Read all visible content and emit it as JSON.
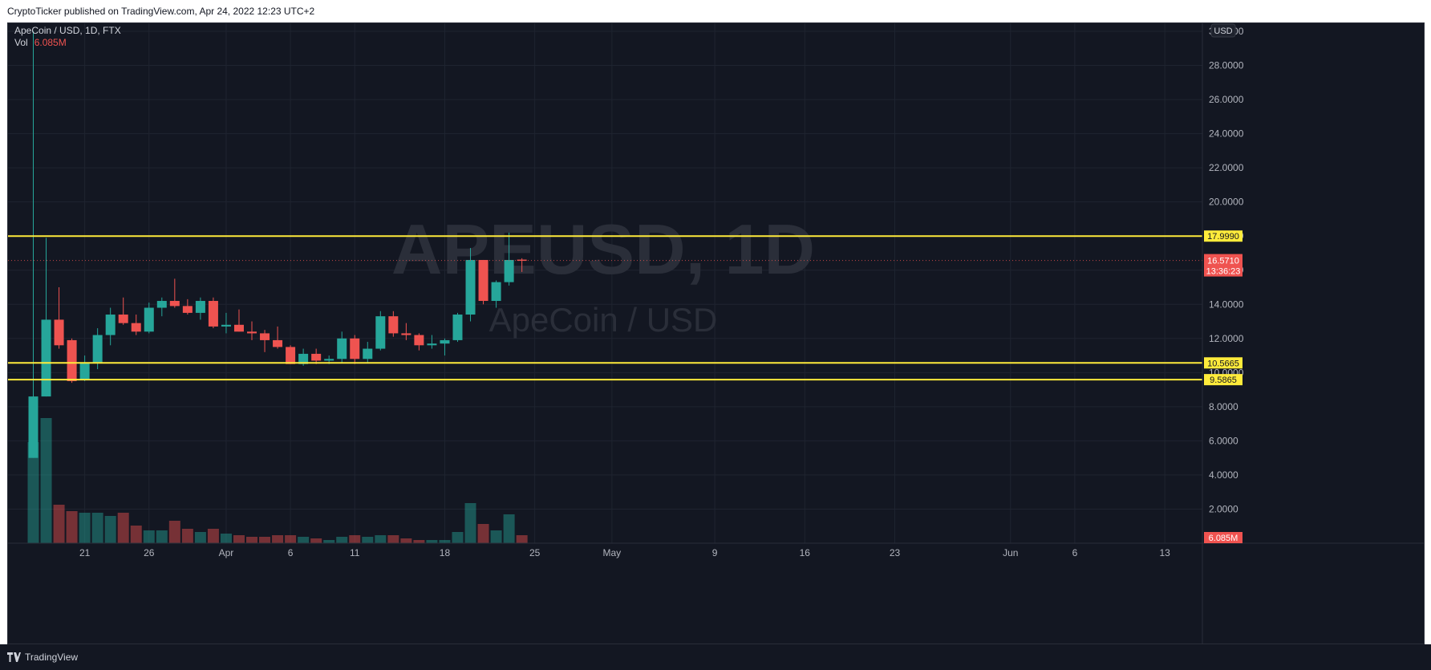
{
  "publish_note": "CryptoTicker published on TradingView.com, Apr 24, 2022 12:23 UTC+2",
  "brand": {
    "name": "TradingView",
    "icon": "tradingview-logo-icon"
  },
  "colors": {
    "background": "#131722",
    "up": "#26a69a",
    "down": "#ef5350",
    "level_line": "#ffeb3b",
    "watermark": "#2a2e39"
  },
  "legend": {
    "title": "ApeCoin / USD, 1D, FTX",
    "vol_label": "Vol",
    "vol_value": "6.085M"
  },
  "watermark": {
    "symbol": "APEUSD, 1D",
    "name": "ApeCoin / USD"
  },
  "currency_badge": "USD",
  "chart_data": {
    "type": "candlestick",
    "title": "ApeCoin / USD, 1D, FTX",
    "ylim": [
      0,
      30
    ],
    "y_ticks": [
      "2.0000",
      "4.0000",
      "6.0000",
      "8.0000",
      "10.0000",
      "12.0000",
      "14.0000",
      "16.0000",
      "18.0000",
      "20.0000",
      "22.0000",
      "24.0000",
      "26.0000",
      "28.0000",
      "30.0000"
    ],
    "x_ticks": [
      "21",
      "26",
      "Apr",
      "6",
      "11",
      "18",
      "25",
      "May",
      "9",
      "16",
      "23",
      "Jun",
      "6",
      "13"
    ],
    "price_scale_labels": [
      {
        "label": "17.9990",
        "type": "horizontal-level"
      },
      {
        "label": "10.5665",
        "type": "horizontal-level"
      },
      {
        "label": "9.5865",
        "type": "horizontal-level"
      },
      {
        "label": "16.5710",
        "type": "last-price"
      },
      {
        "label": "13:36:23",
        "type": "countdown"
      },
      {
        "label": "6.085M",
        "type": "last-volume"
      }
    ],
    "horizontal_levels": [
      17.999,
      10.5665,
      9.5865
    ],
    "last_price": 16.571,
    "series": [
      {
        "date": "2022-03-17",
        "open": 5.0,
        "high": 30.0,
        "low": 5.0,
        "close": 8.6,
        "volume": 6.3
      },
      {
        "date": "2022-03-18",
        "open": 8.6,
        "high": 17.9,
        "low": 8.6,
        "close": 13.1,
        "volume": 7.8
      },
      {
        "date": "2022-03-19",
        "open": 13.1,
        "high": 15.0,
        "low": 11.4,
        "close": 11.6,
        "volume": 2.4
      },
      {
        "date": "2022-03-20",
        "open": 11.9,
        "high": 12.0,
        "low": 9.4,
        "close": 9.5,
        "volume": 2.0
      },
      {
        "date": "2022-03-21",
        "open": 9.6,
        "high": 11.0,
        "low": 9.5,
        "close": 10.6,
        "volume": 1.9
      },
      {
        "date": "2022-03-22",
        "open": 10.6,
        "high": 12.6,
        "low": 10.2,
        "close": 12.2,
        "volume": 1.9
      },
      {
        "date": "2022-03-23",
        "open": 12.2,
        "high": 13.8,
        "low": 11.6,
        "close": 13.4,
        "volume": 1.7
      },
      {
        "date": "2022-03-24",
        "open": 13.4,
        "high": 14.4,
        "low": 12.8,
        "close": 12.9,
        "volume": 1.9
      },
      {
        "date": "2022-03-25",
        "open": 12.9,
        "high": 13.4,
        "low": 12.2,
        "close": 12.4,
        "volume": 1.1
      },
      {
        "date": "2022-03-26",
        "open": 12.4,
        "high": 14.1,
        "low": 12.3,
        "close": 13.8,
        "volume": 0.8
      },
      {
        "date": "2022-03-27",
        "open": 13.8,
        "high": 14.4,
        "low": 13.3,
        "close": 14.2,
        "volume": 0.8
      },
      {
        "date": "2022-03-28",
        "open": 14.2,
        "high": 15.5,
        "low": 13.8,
        "close": 13.9,
        "volume": 1.4
      },
      {
        "date": "2022-03-29",
        "open": 13.9,
        "high": 14.3,
        "low": 13.4,
        "close": 13.5,
        "volume": 0.9
      },
      {
        "date": "2022-03-30",
        "open": 13.5,
        "high": 14.4,
        "low": 13.1,
        "close": 14.2,
        "volume": 0.7
      },
      {
        "date": "2022-03-31",
        "open": 14.2,
        "high": 14.4,
        "low": 12.6,
        "close": 12.7,
        "volume": 0.9
      },
      {
        "date": "2022-04-01",
        "open": 12.7,
        "high": 13.5,
        "low": 12.3,
        "close": 12.8,
        "volume": 0.6
      },
      {
        "date": "2022-04-02",
        "open": 12.8,
        "high": 13.7,
        "low": 12.4,
        "close": 12.4,
        "volume": 0.5
      },
      {
        "date": "2022-04-03",
        "open": 12.4,
        "high": 13.0,
        "low": 11.9,
        "close": 12.3,
        "volume": 0.4
      },
      {
        "date": "2022-04-04",
        "open": 12.3,
        "high": 12.5,
        "low": 11.2,
        "close": 11.9,
        "volume": 0.4
      },
      {
        "date": "2022-04-05",
        "open": 11.9,
        "high": 12.7,
        "low": 11.4,
        "close": 11.5,
        "volume": 0.5
      },
      {
        "date": "2022-04-06",
        "open": 11.5,
        "high": 11.6,
        "low": 10.5,
        "close": 10.5,
        "volume": 0.5
      },
      {
        "date": "2022-04-07",
        "open": 10.5,
        "high": 11.4,
        "low": 10.4,
        "close": 11.1,
        "volume": 0.4
      },
      {
        "date": "2022-04-08",
        "open": 11.1,
        "high": 11.4,
        "low": 10.5,
        "close": 10.7,
        "volume": 0.3
      },
      {
        "date": "2022-04-09",
        "open": 10.7,
        "high": 11.0,
        "low": 10.5,
        "close": 10.8,
        "volume": 0.2
      },
      {
        "date": "2022-04-10",
        "open": 10.8,
        "high": 12.4,
        "low": 10.6,
        "close": 12.0,
        "volume": 0.4
      },
      {
        "date": "2022-04-11",
        "open": 12.0,
        "high": 12.2,
        "low": 10.5,
        "close": 10.8,
        "volume": 0.5
      },
      {
        "date": "2022-04-12",
        "open": 10.8,
        "high": 11.8,
        "low": 10.6,
        "close": 11.4,
        "volume": 0.4
      },
      {
        "date": "2022-04-13",
        "open": 11.4,
        "high": 13.6,
        "low": 11.3,
        "close": 13.3,
        "volume": 0.5
      },
      {
        "date": "2022-04-14",
        "open": 13.3,
        "high": 13.6,
        "low": 12.1,
        "close": 12.3,
        "volume": 0.5
      },
      {
        "date": "2022-04-15",
        "open": 12.3,
        "high": 12.9,
        "low": 11.9,
        "close": 12.2,
        "volume": 0.3
      },
      {
        "date": "2022-04-16",
        "open": 12.2,
        "high": 12.3,
        "low": 11.3,
        "close": 11.6,
        "volume": 0.2
      },
      {
        "date": "2022-04-17",
        "open": 11.6,
        "high": 12.2,
        "low": 11.4,
        "close": 11.7,
        "volume": 0.2
      },
      {
        "date": "2022-04-18",
        "open": 11.7,
        "high": 12.0,
        "low": 11.0,
        "close": 11.9,
        "volume": 0.2
      },
      {
        "date": "2022-04-19",
        "open": 11.9,
        "high": 13.5,
        "low": 11.8,
        "close": 13.4,
        "volume": 0.7
      },
      {
        "date": "2022-04-20",
        "open": 13.4,
        "high": 17.3,
        "low": 13.0,
        "close": 16.6,
        "volume": 2.5
      },
      {
        "date": "2022-04-21",
        "open": 16.6,
        "high": 16.6,
        "low": 14.0,
        "close": 14.2,
        "volume": 1.2
      },
      {
        "date": "2022-04-22",
        "open": 14.2,
        "high": 15.4,
        "low": 13.8,
        "close": 15.3,
        "volume": 0.8
      },
      {
        "date": "2022-04-23",
        "open": 15.3,
        "high": 18.2,
        "low": 15.1,
        "close": 16.6,
        "volume": 1.8
      },
      {
        "date": "2022-04-24",
        "open": 16.62,
        "high": 16.7,
        "low": 15.9,
        "close": 16.571,
        "volume": 0.5
      }
    ]
  }
}
